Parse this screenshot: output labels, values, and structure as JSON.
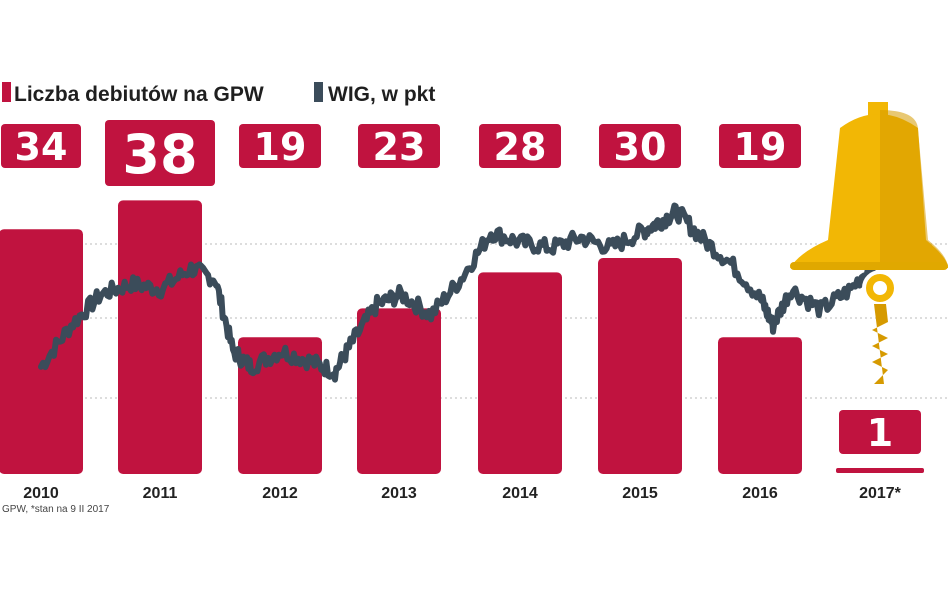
{
  "legend": [
    {
      "label": "Liczba  debiutów na GPW",
      "color": "#c0133f"
    },
    {
      "label": "WIG, w pkt",
      "color": "#3b4c5a"
    }
  ],
  "source_note": "GPW, *stan na 9 II 2017",
  "colors": {
    "bar": "#c0133f",
    "line": "#3b4c5a",
    "grid": "#bbbbbb",
    "bell": "#f2b705",
    "bell_shade": "#d69a00"
  },
  "icons": [
    "bell-icon"
  ],
  "chart_data": {
    "type": "bar",
    "categories": [
      "2010",
      "2011",
      "2012",
      "2013",
      "2014",
      "2015",
      "2016",
      "2017*"
    ],
    "series": [
      {
        "values": [
          34,
          38,
          19,
          23,
          28,
          30,
          19,
          1
        ],
        "labels": [
          "34",
          "38",
          "19",
          "23",
          "28",
          "30",
          "19",
          "1"
        ]
      },
      {
        "type": "line",
        "x": [
          2010.0,
          2010.25,
          2010.5,
          2010.75,
          2011.0,
          2011.25,
          2011.45,
          2011.6,
          2011.75,
          2012.0,
          2012.25,
          2012.45,
          2012.6,
          2012.8,
          2013.0,
          2013.25,
          2013.5,
          2013.75,
          2014.0,
          2014.25,
          2014.5,
          2014.75,
          2015.0,
          2015.15,
          2015.3,
          2015.5,
          2015.75,
          2016.0,
          2016.1,
          2016.25,
          2016.5,
          2016.75,
          2017.0,
          2017.12
        ],
        "y": [
          40000,
          44000,
          47000,
          48000,
          47500,
          49500,
          48500,
          41500,
          40000,
          41500,
          40500,
          39500,
          42500,
          46000,
          47000,
          45000,
          48500,
          53000,
          52000,
          51500,
          52500,
          51500,
          53000,
          54000,
          55000,
          52500,
          50000,
          46500,
          44000,
          47500,
          45500,
          47500,
          51000,
          57000
        ]
      }
    ],
    "ylim": [
      0,
      45
    ],
    "y2lim": [
      30000,
      60000
    ],
    "grid": true,
    "legend_position": "top-left"
  }
}
